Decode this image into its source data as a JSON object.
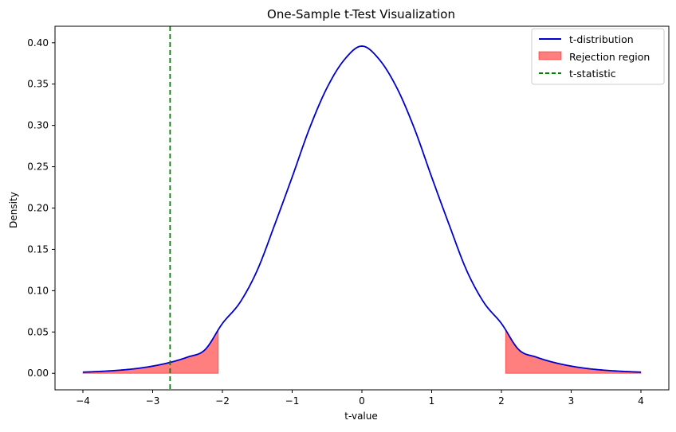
{
  "chart_data": {
    "type": "line",
    "title": "One-Sample t-Test Visualization",
    "xlabel": "t-value",
    "ylabel": "Density",
    "xlim": [
      -4.4,
      4.4
    ],
    "ylim": [
      -0.02,
      0.42
    ],
    "xticks": [
      -4,
      -3,
      -2,
      -1,
      0,
      1,
      2,
      3,
      4
    ],
    "xtick_labels": [
      "−4",
      "−3",
      "−2",
      "−1",
      "0",
      "1",
      "2",
      "3",
      "4"
    ],
    "yticks": [
      0.0,
      0.05,
      0.1,
      0.15,
      0.2,
      0.25,
      0.3,
      0.35,
      0.4
    ],
    "ytick_labels": [
      "0.00",
      "0.05",
      "0.10",
      "0.15",
      "0.20",
      "0.25",
      "0.30",
      "0.35",
      "0.40"
    ],
    "grid": false,
    "legend_position": "top-right",
    "series": [
      {
        "name": "t-distribution",
        "kind": "line",
        "color": "#0000cc",
        "x": [
          -4.0,
          -3.75,
          -3.5,
          -3.25,
          -3.0,
          -2.75,
          -2.5,
          -2.25,
          -2.0,
          -1.75,
          -1.5,
          -1.25,
          -1.0,
          -0.75,
          -0.5,
          -0.25,
          0.0,
          0.25,
          0.5,
          0.75,
          1.0,
          1.25,
          1.5,
          1.75,
          2.0,
          2.25,
          2.5,
          2.75,
          3.0,
          3.25,
          3.5,
          3.75,
          4.0
        ],
        "y": [
          0.0014,
          0.0023,
          0.0036,
          0.0056,
          0.0087,
          0.0132,
          0.0196,
          0.0285,
          0.0603,
          0.0855,
          0.1248,
          0.1799,
          0.2375,
          0.2967,
          0.3456,
          0.3797,
          0.396,
          0.3797,
          0.3456,
          0.2967,
          0.2375,
          0.1799,
          0.1248,
          0.0855,
          0.0603,
          0.0285,
          0.0196,
          0.0132,
          0.0087,
          0.0056,
          0.0036,
          0.0023,
          0.0014
        ]
      },
      {
        "name": "Rejection region",
        "kind": "area",
        "color": "#ff0000",
        "opacity": 0.5,
        "ranges": [
          [
            -4.0,
            -2.06
          ],
          [
            2.06,
            4.0
          ]
        ]
      },
      {
        "name": "t-statistic",
        "kind": "vline",
        "color": "#008000",
        "style": "dashed",
        "x": -2.75
      }
    ]
  }
}
